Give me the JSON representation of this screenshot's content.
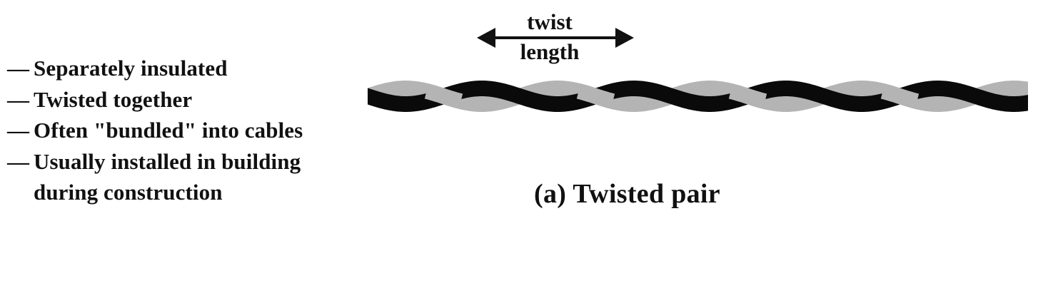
{
  "features": [
    {
      "dash": "—",
      "text": "Separately insulated"
    },
    {
      "dash": "—",
      "text": "Twisted together"
    },
    {
      "dash": "—",
      "text": "Often \"bundled\" into cables"
    },
    {
      "dash": "—",
      "text": "Usually installed in building\nduring construction"
    }
  ],
  "twist_label": {
    "line1": "twist",
    "line2": "length"
  },
  "caption": "(a) Twisted pair",
  "colors": {
    "dark_wire": "#0a0a0a",
    "light_wire": "#b4b4b4"
  },
  "icons": {
    "dimension_arrow": "double-headed-arrow-icon"
  }
}
